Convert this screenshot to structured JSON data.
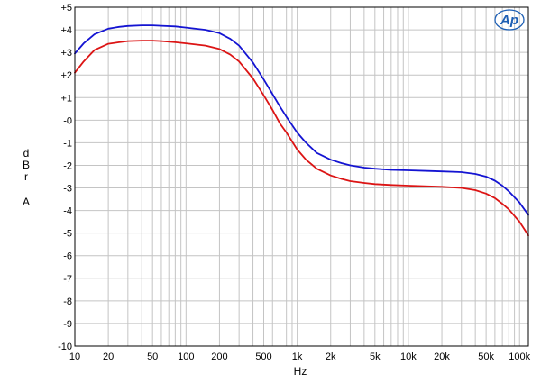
{
  "chart_data": {
    "type": "line",
    "title": "",
    "xlabel": "Hz",
    "ylabel": [
      "d",
      "B",
      "r",
      "",
      "A"
    ],
    "x_scale": "log",
    "xlim": [
      10,
      120000
    ],
    "ylim": [
      -10,
      5
    ],
    "grid": true,
    "x_ticks": [
      {
        "value": 10,
        "label": "10"
      },
      {
        "value": 20,
        "label": "20"
      },
      {
        "value": 50,
        "label": "50"
      },
      {
        "value": 100,
        "label": "100"
      },
      {
        "value": 200,
        "label": "200"
      },
      {
        "value": 500,
        "label": "500"
      },
      {
        "value": 1000,
        "label": "1k"
      },
      {
        "value": 2000,
        "label": "2k"
      },
      {
        "value": 5000,
        "label": "5k"
      },
      {
        "value": 10000,
        "label": "10k"
      },
      {
        "value": 20000,
        "label": "20k"
      },
      {
        "value": 50000,
        "label": "50k"
      },
      {
        "value": 100000,
        "label": "100k"
      }
    ],
    "y_ticks": [
      {
        "value": 5,
        "label": "+5"
      },
      {
        "value": 4,
        "label": "+4"
      },
      {
        "value": 3,
        "label": "+3"
      },
      {
        "value": 2,
        "label": "+2"
      },
      {
        "value": 1,
        "label": "+1"
      },
      {
        "value": 0,
        "label": "-0"
      },
      {
        "value": -1,
        "label": "-1"
      },
      {
        "value": -2,
        "label": "-2"
      },
      {
        "value": -3,
        "label": "-3"
      },
      {
        "value": -4,
        "label": "-4"
      },
      {
        "value": -5,
        "label": "-5"
      },
      {
        "value": -6,
        "label": "-6"
      },
      {
        "value": -7,
        "label": "-7"
      },
      {
        "value": -8,
        "label": "-8"
      },
      {
        "value": -9,
        "label": "-9"
      },
      {
        "value": -10,
        "label": "-10"
      }
    ],
    "series": [
      {
        "color": "#1414d2",
        "x": [
          10,
          12,
          15,
          20,
          25,
          30,
          40,
          50,
          60,
          80,
          100,
          150,
          200,
          250,
          300,
          400,
          500,
          600,
          700,
          800,
          1000,
          1200,
          1500,
          2000,
          2500,
          3000,
          4000,
          5000,
          7000,
          10000,
          15000,
          20000,
          30000,
          40000,
          50000,
          60000,
          70000,
          80000,
          100000,
          120000
        ],
        "y": [
          2.95,
          3.4,
          3.8,
          4.05,
          4.13,
          4.17,
          4.2,
          4.2,
          4.18,
          4.15,
          4.1,
          4.0,
          3.85,
          3.6,
          3.3,
          2.55,
          1.8,
          1.15,
          0.6,
          0.15,
          -0.55,
          -1.0,
          -1.45,
          -1.75,
          -1.9,
          -2.0,
          -2.1,
          -2.15,
          -2.2,
          -2.22,
          -2.25,
          -2.27,
          -2.3,
          -2.38,
          -2.5,
          -2.68,
          -2.9,
          -3.15,
          -3.65,
          -4.2
        ]
      },
      {
        "color": "#dc1414",
        "x": [
          10,
          12,
          15,
          20,
          25,
          30,
          40,
          50,
          60,
          80,
          100,
          150,
          200,
          250,
          300,
          400,
          500,
          600,
          700,
          800,
          1000,
          1200,
          1500,
          2000,
          2500,
          3000,
          4000,
          5000,
          7000,
          10000,
          15000,
          20000,
          30000,
          40000,
          50000,
          60000,
          70000,
          80000,
          100000,
          120000
        ],
        "y": [
          2.1,
          2.6,
          3.1,
          3.38,
          3.45,
          3.5,
          3.52,
          3.52,
          3.5,
          3.45,
          3.4,
          3.3,
          3.15,
          2.9,
          2.6,
          1.85,
          1.1,
          0.45,
          -0.15,
          -0.55,
          -1.3,
          -1.75,
          -2.15,
          -2.45,
          -2.6,
          -2.7,
          -2.78,
          -2.83,
          -2.87,
          -2.9,
          -2.93,
          -2.95,
          -3.0,
          -3.1,
          -3.25,
          -3.45,
          -3.7,
          -3.95,
          -4.5,
          -5.1
        ]
      }
    ]
  },
  "logo": {
    "text": "Ap",
    "color": "#1e5fb4"
  }
}
